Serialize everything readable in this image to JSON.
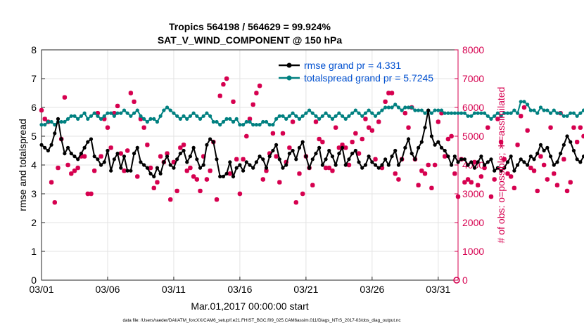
{
  "chart_data": {
    "type": "line",
    "title": "Tropics 564198 / 564629 = 99.924%",
    "subtitle": "SAT_V_WIND_COMPONENT @ 150 hPa",
    "xlabel": "Mar.01,2017 00:00:00 start",
    "ylabel_left": "rmse and totalspread",
    "ylabel_right": "# of obs: o=possible; ∗=assimilated",
    "footnote": "data file: /Users/raeder/DAI/ATM_forcXX/CAM6_setup/f.e21.FHIST_BGC.f09_025.CAM6assim.011/Diags_NTrS_2017-03/obs_diag_output.nc",
    "x_range": [
      1,
      32.5
    ],
    "x_ticks": [
      1,
      6,
      11,
      16,
      21,
      26,
      31
    ],
    "x_tick_labels": [
      "03/01",
      "03/06",
      "03/11",
      "03/16",
      "03/21",
      "03/26",
      "03/31"
    ],
    "ylim_left": [
      0,
      8
    ],
    "y_ticks_left": [
      "0",
      "1",
      "2",
      "3",
      "4",
      "5",
      "6",
      "7",
      "8"
    ],
    "ylim_right": [
      0,
      8000
    ],
    "y_ticks_right": [
      "0",
      "1000",
      "2000",
      "3000",
      "4000",
      "5000",
      "6000",
      "7000",
      "8000"
    ],
    "grid": true,
    "legend_position": "top-right",
    "colors": {
      "rmse": "#000000",
      "spread": "#008080",
      "obs": "#d6004f",
      "legend_text": "#0050d0"
    },
    "series": [
      {
        "name": "rmse grand pr = 4.331",
        "style": "line-dot",
        "x_start": 1.0,
        "x_step": 0.25,
        "values": [
          4.7,
          4.6,
          4.5,
          4.7,
          5.1,
          5.6,
          4.9,
          4.4,
          4.6,
          4.4,
          4.3,
          4.2,
          4.4,
          4.6,
          4.8,
          4.9,
          4.3,
          4.2,
          4.0,
          4.1,
          4.5,
          3.8,
          4.2,
          4.4,
          3.9,
          4.3,
          3.8,
          3.8,
          4.4,
          4.6,
          4.1,
          4.0,
          3.9,
          3.7,
          3.6,
          3.9,
          3.7,
          4.1,
          4.3,
          4.0,
          3.9,
          4.2,
          4.4,
          4.5,
          4.1,
          4.3,
          4.6,
          4.2,
          3.9,
          4.0,
          4.7,
          4.9,
          4.8,
          4.2,
          3.6,
          3.6,
          3.7,
          4.1,
          3.6,
          3.9,
          4.0,
          3.8,
          4.1,
          4.0,
          3.9,
          4.1,
          4.3,
          4.2,
          3.9,
          4.3,
          4.5,
          4.7,
          4.2,
          3.9,
          4.0,
          4.4,
          4.5,
          4.2,
          4.6,
          4.8,
          4.3,
          3.9,
          4.2,
          4.4,
          4.6,
          4.0,
          4.2,
          4.5,
          4.3,
          4.0,
          4.4,
          4.6,
          4.0,
          4.2,
          4.4,
          4.5,
          4.1,
          3.9,
          4.0,
          4.3,
          4.1,
          4.0,
          3.9,
          4.0,
          4.2,
          4.0,
          4.3,
          4.5,
          4.0,
          4.2,
          4.6,
          4.9,
          4.4,
          4.2,
          4.6,
          4.8,
          5.3,
          5.9,
          5.0,
          4.7,
          4.8,
          4.6,
          4.5,
          4.3,
          4.0,
          4.3,
          4.1,
          4.2,
          4.2,
          4.0,
          4.1,
          3.9,
          4.1,
          4.3,
          4.0,
          4.1,
          4.2,
          3.8,
          3.9,
          3.8,
          3.9,
          4.1,
          4.3,
          3.8,
          4.0,
          4.2,
          4.1,
          4.0,
          4.3,
          4.2,
          4.4,
          4.7,
          4.5,
          4.6,
          4.3,
          4.0,
          4.1,
          4.4,
          4.7,
          5.0,
          4.8,
          4.5,
          4.2,
          4.1,
          4.3,
          4.2,
          4.4,
          4.5,
          4.5
        ]
      },
      {
        "name": "totalspread grand pr = 5.7245",
        "style": "line-dot",
        "x_start": 1.0,
        "x_step": 0.25,
        "values": [
          5.4,
          5.4,
          5.5,
          5.5,
          5.4,
          5.5,
          5.5,
          5.5,
          5.6,
          5.7,
          5.7,
          5.6,
          5.7,
          5.8,
          5.6,
          5.7,
          5.8,
          5.7,
          5.6,
          5.7,
          5.8,
          5.8,
          5.7,
          5.8,
          5.8,
          5.9,
          5.8,
          5.7,
          5.8,
          5.9,
          5.7,
          5.6,
          5.5,
          5.6,
          5.6,
          5.5,
          5.7,
          5.9,
          6.0,
          5.9,
          5.8,
          5.7,
          5.6,
          5.7,
          5.6,
          5.7,
          5.8,
          5.7,
          5.6,
          5.7,
          5.8,
          5.7,
          5.5,
          5.5,
          5.4,
          5.5,
          5.6,
          5.6,
          5.5,
          5.6,
          5.4,
          5.4,
          5.5,
          5.5,
          5.4,
          5.4,
          5.4,
          5.5,
          5.5,
          5.4,
          5.4,
          5.6,
          5.7,
          5.7,
          5.6,
          5.7,
          5.8,
          5.7,
          5.6,
          5.7,
          5.8,
          5.9,
          5.8,
          5.7,
          5.6,
          5.7,
          5.8,
          5.7,
          5.6,
          5.7,
          5.8,
          5.7,
          5.6,
          5.7,
          5.8,
          5.9,
          5.8,
          5.7,
          5.8,
          5.9,
          5.8,
          5.7,
          5.8,
          5.9,
          6.0,
          6.0,
          6.0,
          6.1,
          6.0,
          5.9,
          6.0,
          6.0,
          6.0,
          5.9,
          5.9,
          5.9,
          5.8,
          5.9,
          5.8,
          5.9,
          5.9,
          5.9,
          5.8,
          5.8,
          5.8,
          5.8,
          5.8,
          5.8,
          5.8,
          5.7,
          5.7,
          5.8,
          5.8,
          5.8,
          5.8,
          5.7,
          5.6,
          5.7,
          5.8,
          5.7,
          5.8,
          5.8,
          5.8,
          5.9,
          5.8,
          6.2,
          6.2,
          6.1,
          5.9,
          5.9,
          5.8,
          6.0,
          5.9,
          5.9,
          5.8,
          5.9,
          5.8,
          5.8,
          5.7,
          5.7,
          5.8,
          5.8,
          5.7,
          5.8,
          5.9,
          5.9,
          6.0,
          6.0
        ]
      },
      {
        "name": "observations assimilated",
        "style": "marker",
        "x_start": 1.0,
        "x_step": 0.25,
        "values": [
          5900,
          5600,
          5500,
          3400,
          2700,
          3900,
          4900,
          6350,
          4000,
          3700,
          3800,
          3900,
          4300,
          4300,
          3000,
          3000,
          3800,
          5800,
          4300,
          5600,
          5300,
          4600,
          5800,
          6050,
          4400,
          3800,
          4500,
          6500,
          6200,
          3600,
          5600,
          5300,
          4700,
          3900,
          3200,
          3400,
          4300,
          4100,
          4400,
          2800,
          4100,
          3100,
          4600,
          4700,
          3800,
          3900,
          3600,
          3500,
          3100,
          4300,
          3500,
          3800,
          4800,
          2800,
          6400,
          6800,
          7000,
          3700,
          6200,
          4200,
          3000,
          4200,
          5000,
          5600,
          6100,
          6500,
          6750,
          3500,
          3800,
          4400,
          5100,
          4300,
          3400,
          5100,
          4100,
          4600,
          5500,
          2700,
          3700,
          3000,
          4300,
          3900,
          3300,
          5500,
          4900,
          4800,
          3900,
          3900,
          3800,
          5300,
          4600,
          4700,
          4600,
          4000,
          4800,
          5100,
          4400,
          4900,
          5600,
          5300,
          5200,
          4200,
          5500,
          3900,
          6200,
          6500,
          6500,
          3700,
          3500,
          4200,
          5800,
          5300,
          6000,
          4200,
          3300,
          3800,
          3700,
          4000,
          3200,
          4000,
          5500,
          5800,
          4300,
          4900,
          5000,
          3700,
          2900,
          4200,
          3400,
          3500,
          3400,
          4100,
          3300,
          3600,
          3900,
          5300,
          2900,
          3500,
          5600,
          4800,
          4200,
          3700,
          3600,
          3200,
          4700,
          5700,
          6000,
          5200,
          3900,
          3800,
          3100,
          4300,
          4000,
          3500,
          5300,
          3700,
          3300,
          5800,
          4200,
          3100,
          3400,
          5300,
          4800,
          5300,
          5000,
          4600,
          5800,
          4200,
          3600,
          3400,
          6500,
          4800,
          6000
        ]
      },
      {
        "name": "observations possible",
        "style": "marker",
        "values": []
      }
    ]
  }
}
